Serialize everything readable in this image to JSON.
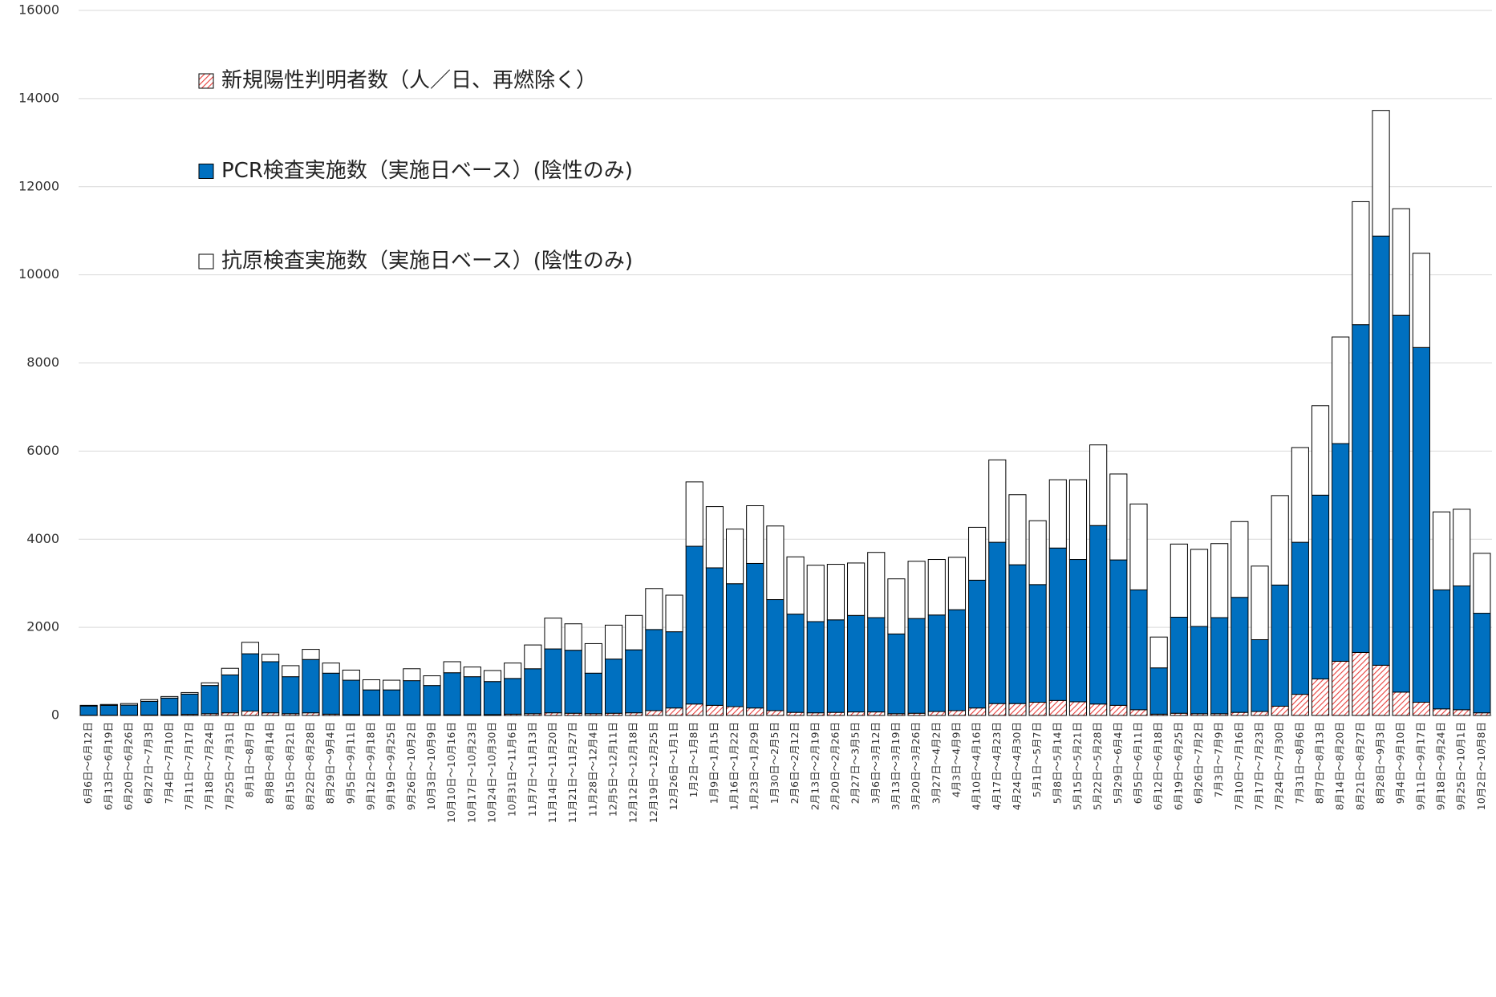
{
  "chart_data": {
    "type": "stacked_bar",
    "categories": [
      "6月6日～6月12日",
      "6月13日～6月19日",
      "6月20日～6月26日",
      "6月27日～7月3日",
      "7月4日～7月10日",
      "7月11日～7月17日",
      "7月18日～7月24日",
      "7月25日～7月31日",
      "8月1日～8月7日",
      "8月8日～8月14日",
      "8月15日～8月21日",
      "8月22日～8月28日",
      "8月29日～9月4日",
      "9月5日～9月11日",
      "9月12日～9月18日",
      "9月19日～9月25日",
      "9月26日～10月2日",
      "10月3日～10月9日",
      "10月10日～10月16日",
      "10月17日～10月23日",
      "10月24日～10月30日",
      "10月31日～11月6日",
      "11月7日～11月13日",
      "11月14日～11月20日",
      "11月21日～11月27日",
      "11月28日～12月4日",
      "12月5日～12月11日",
      "12月12日～12月18日",
      "12月19日～12月25日",
      "12月26日～1月1日",
      "1月2日～1月8日",
      "1月9日～1月15日",
      "1月16日～1月22日",
      "1月23日～1月29日",
      "1月30日～2月5日",
      "2月6日～2月12日",
      "2月13日～2月19日",
      "2月20日～2月26日",
      "2月27日～3月5日",
      "3月6日～3月12日",
      "3月13日～3月19日",
      "3月20日～3月26日",
      "3月27日～4月2日",
      "4月3日～4月9日",
      "4月10日～4月16日",
      "4月17日～4月23日",
      "4月24日～4月30日",
      "5月1日～5月7日",
      "5月8日～5月14日",
      "5月15日～5月21日",
      "5月22日～5月28日",
      "5月29日～6月4日",
      "6月5日～6月11日",
      "6月12日～6月18日",
      "6月19日～6月25日",
      "6月26日～7月2日",
      "7月3日～7月9日",
      "7月10日～7月16日",
      "7月17日～7月23日",
      "7月24日～7月30日",
      "7月31日～8月6日",
      "8月7日～8月13日",
      "8月14日～8月20日",
      "8月21日～8月27日",
      "8月28日～9月3日",
      "9月4日～9月10日",
      "9月11日～9月17日",
      "9月18日～9月24日",
      "9月25日～10月1日",
      "10月2日～10月8日"
    ],
    "series": [
      {
        "name": "新規陽性判明者数（人／日、再燃除く）",
        "color": "#e8403c",
        "hatch": true,
        "values": [
          5,
          5,
          5,
          10,
          15,
          25,
          40,
          60,
          100,
          60,
          40,
          60,
          30,
          20,
          15,
          10,
          15,
          15,
          15,
          15,
          20,
          30,
          40,
          60,
          50,
          40,
          50,
          60,
          110,
          170,
          260,
          230,
          200,
          170,
          110,
          70,
          60,
          70,
          80,
          80,
          40,
          50,
          90,
          110,
          170,
          270,
          270,
          300,
          340,
          310,
          260,
          230,
          130,
          30,
          50,
          40,
          40,
          70,
          90,
          210,
          480,
          830,
          1230,
          1430,
          1140,
          530,
          300,
          150,
          130,
          60
        ]
      },
      {
        "name": "PCR検査実施数（実施日ベース）(陰性のみ)",
        "color": "#0070c0",
        "hatch": false,
        "values": [
          210,
          225,
          230,
          310,
          380,
          460,
          640,
          860,
          1300,
          1160,
          840,
          1210,
          930,
          780,
          565,
          570,
          775,
          665,
          955,
          865,
          750,
          810,
          1020,
          1450,
          1430,
          920,
          1230,
          1430,
          1840,
          1730,
          3580,
          3120,
          2790,
          3280,
          2520,
          2230,
          2070,
          2100,
          2190,
          2140,
          1810,
          2150,
          2190,
          2290,
          2900,
          3660,
          3150,
          2670,
          3460,
          3230,
          4050,
          3300,
          2720,
          1050,
          2180,
          1980,
          2180,
          2610,
          1630,
          2750,
          3450,
          4170,
          4940,
          7440,
          9740,
          8550,
          8050,
          2700,
          2810,
          2260
        ]
      },
      {
        "name": "抗原検査実施数（実施日ベース）(陰性のみ)",
        "color": "#ffffff",
        "hatch": false,
        "values": [
          15,
          20,
          35,
          40,
          35,
          35,
          60,
          150,
          260,
          170,
          250,
          230,
          230,
          230,
          230,
          220,
          270,
          220,
          250,
          220,
          250,
          350,
          540,
          700,
          600,
          670,
          770,
          780,
          930,
          830,
          1460,
          1390,
          1240,
          1310,
          1670,
          1300,
          1280,
          1260,
          1190,
          1480,
          1250,
          1300,
          1260,
          1190,
          1200,
          1870,
          1590,
          1450,
          1550,
          1810,
          1830,
          1950,
          1950,
          700,
          1660,
          1750,
          1680,
          1720,
          1670,
          2030,
          2150,
          2030,
          2420,
          2790,
          2850,
          2420,
          2140,
          1770,
          1740,
          1360
        ]
      }
    ],
    "ylim": [
      0,
      16000
    ],
    "yticks": [
      0,
      2000,
      4000,
      6000,
      8000,
      10000,
      12000,
      14000,
      16000
    ],
    "grid": true
  }
}
